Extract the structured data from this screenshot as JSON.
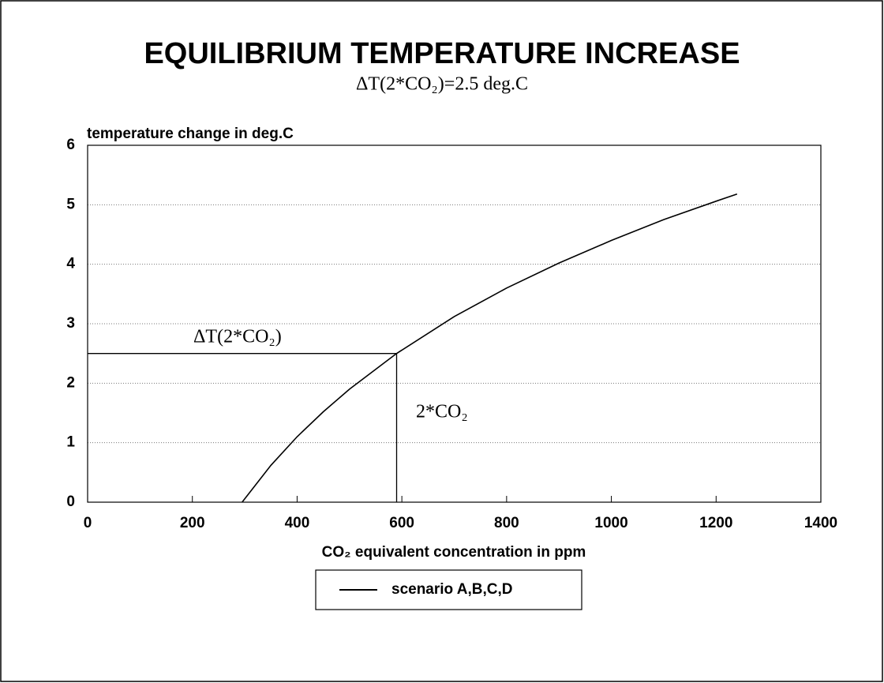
{
  "chart_data": {
    "type": "line",
    "title": "EQUILIBRIUM TEMPERATURE INCREASE",
    "subtitle": "ΔT(2*CO₂)=2.5 deg.C",
    "y_label": "temperature change in deg.C",
    "x_label": "CO₂ equivalent concentration in ppm",
    "x": [
      295,
      350,
      400,
      450,
      500,
      590,
      700,
      800,
      900,
      1000,
      1100,
      1200,
      1240
    ],
    "series": [
      {
        "name": "scenario A,B,C,D",
        "color": "#000000",
        "values": [
          0,
          0.62,
          1.1,
          1.52,
          1.9,
          2.5,
          3.12,
          3.6,
          4.02,
          4.4,
          4.75,
          5.06,
          5.18
        ]
      }
    ],
    "reference": {
      "x": 590,
      "y": 2.5
    },
    "annotations": [
      {
        "text": "ΔT(2*CO₂)"
      },
      {
        "text": "2*CO₂"
      }
    ],
    "xlim": [
      0,
      1400
    ],
    "xticks": [
      0,
      200,
      400,
      600,
      800,
      1000,
      1200,
      1400
    ],
    "ylim": [
      0,
      6
    ],
    "yticks": [
      0,
      1,
      2,
      3,
      4,
      5,
      6
    ],
    "grid": true,
    "legend": "bottom"
  }
}
